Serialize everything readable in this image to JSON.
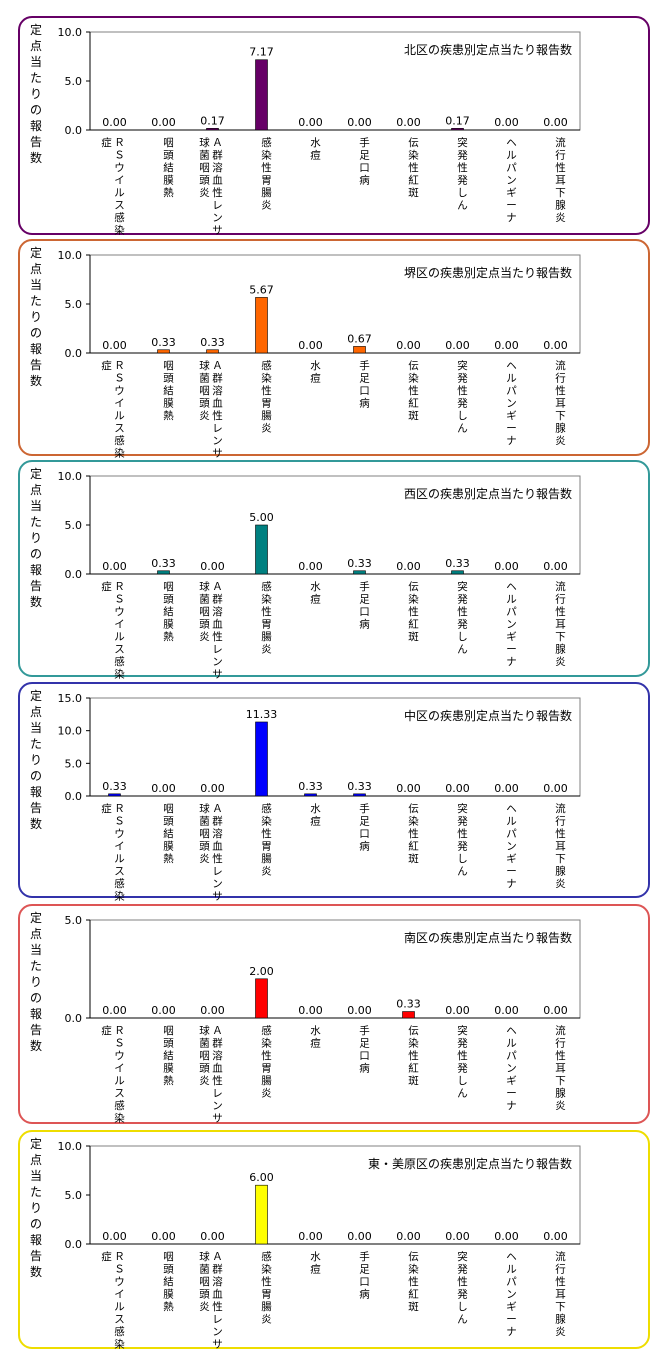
{
  "common": {
    "ylabel": "定点当たりの報告数",
    "categories": [
      [
        "ＲＳウイルス感染",
        "症"
      ],
      [
        "咽頭結膜熱"
      ],
      [
        "Ａ群溶血性レンサ",
        "球菌咽頭炎"
      ],
      [
        "感染性胃腸炎"
      ],
      [
        "水痘"
      ],
      [
        "手足口病"
      ],
      [
        "伝染性紅斑"
      ],
      [
        "突発性発しん"
      ],
      [
        "ヘルパンギーナ"
      ],
      [
        "流行性耳下腺炎"
      ]
    ]
  },
  "chart_data": [
    {
      "type": "bar",
      "title": "北区の疾患別定点当たり報告数",
      "ylabel": "定点当たりの報告数",
      "categories": [
        "ＲＳウイルス感染症",
        "咽頭結膜熱",
        "Ａ群溶血性レンサ球菌咽頭炎",
        "感染性胃腸炎",
        "水痘",
        "手足口病",
        "伝染性紅斑",
        "突発性発しん",
        "ヘルパンギーナ",
        "流行性耳下腺炎"
      ],
      "values": [
        0.0,
        0.0,
        0.17,
        7.17,
        0.0,
        0.0,
        0.0,
        0.17,
        0.0,
        0.0
      ],
      "value_labels": [
        "0.00",
        "0.00",
        "0.17",
        "7.17",
        "0.00",
        "0.00",
        "0.00",
        "0.17",
        "0.00",
        "0.00"
      ],
      "ylim": [
        0,
        10
      ],
      "yticks": [
        "0.0",
        "5.0",
        "10.0"
      ],
      "color": "#660066",
      "border": "#660066"
    },
    {
      "type": "bar",
      "title": "堺区の疾患別定点当たり報告数",
      "ylabel": "定点当たりの報告数",
      "categories": [
        "ＲＳウイルス感染症",
        "咽頭結膜熱",
        "Ａ群溶血性レンサ球菌咽頭炎",
        "感染性胃腸炎",
        "水痘",
        "手足口病",
        "伝染性紅斑",
        "突発性発しん",
        "ヘルパンギーナ",
        "流行性耳下腺炎"
      ],
      "values": [
        0.0,
        0.33,
        0.33,
        5.67,
        0.0,
        0.67,
        0.0,
        0.0,
        0.0,
        0.0
      ],
      "value_labels": [
        "0.00",
        "0.33",
        "0.33",
        "5.67",
        "0.00",
        "0.67",
        "0.00",
        "0.00",
        "0.00",
        "0.00"
      ],
      "ylim": [
        0,
        10
      ],
      "yticks": [
        "0.0",
        "5.0",
        "10.0"
      ],
      "color": "#FF6600",
      "border": "#CC6633"
    },
    {
      "type": "bar",
      "title": "西区の疾患別定点当たり報告数",
      "ylabel": "定点当たりの報告数",
      "categories": [
        "ＲＳウイルス感染症",
        "咽頭結膜熱",
        "Ａ群溶血性レンサ球菌咽頭炎",
        "感染性胃腸炎",
        "水痘",
        "手足口病",
        "伝染性紅斑",
        "突発性発しん",
        "ヘルパンギーナ",
        "流行性耳下腺炎"
      ],
      "values": [
        0.0,
        0.33,
        0.0,
        5.0,
        0.0,
        0.33,
        0.0,
        0.33,
        0.0,
        0.0
      ],
      "value_labels": [
        "0.00",
        "0.33",
        "0.00",
        "5.00",
        "0.00",
        "0.33",
        "0.00",
        "0.33",
        "0.00",
        "0.00"
      ],
      "ylim": [
        0,
        10
      ],
      "yticks": [
        "0.0",
        "5.0",
        "10.0"
      ],
      "color": "#008080",
      "border": "#339999"
    },
    {
      "type": "bar",
      "title": "中区の疾患別定点当たり報告数",
      "ylabel": "定点当たりの報告数",
      "categories": [
        "ＲＳウイルス感染症",
        "咽頭結膜熱",
        "Ａ群溶血性レンサ球菌咽頭炎",
        "感染性胃腸炎",
        "水痘",
        "手足口病",
        "伝染性紅斑",
        "突発性発しん",
        "ヘルパンギーナ",
        "流行性耳下腺炎"
      ],
      "values": [
        0.33,
        0.0,
        0.0,
        11.33,
        0.33,
        0.33,
        0.0,
        0.0,
        0.0,
        0.0
      ],
      "value_labels": [
        "0.33",
        "0.00",
        "0.00",
        "11.33",
        "0.33",
        "0.33",
        "0.00",
        "0.00",
        "0.00",
        "0.00"
      ],
      "ylim": [
        0,
        15
      ],
      "yticks": [
        "0.0",
        "5.0",
        "10.0",
        "15.0"
      ],
      "color": "#0000FF",
      "border": "#3333AA"
    },
    {
      "type": "bar",
      "title": "南区の疾患別定点当たり報告数",
      "ylabel": "定点当たりの報告数",
      "categories": [
        "ＲＳウイルス感染症",
        "咽頭結膜熱",
        "Ａ群溶血性レンサ球菌咽頭炎",
        "感染性胃腸炎",
        "水痘",
        "手足口病",
        "伝染性紅斑",
        "突発性発しん",
        "ヘルパンギーナ",
        "流行性耳下腺炎"
      ],
      "values": [
        0.0,
        0.0,
        0.0,
        2.0,
        0.0,
        0.0,
        0.33,
        0.0,
        0.0,
        0.0
      ],
      "value_labels": [
        "0.00",
        "0.00",
        "0.00",
        "2.00",
        "0.00",
        "0.00",
        "0.33",
        "0.00",
        "0.00",
        "0.00"
      ],
      "ylim": [
        0,
        5
      ],
      "yticks": [
        "0.0",
        "5.0"
      ],
      "color": "#FF0000",
      "border": "#DD5555"
    },
    {
      "type": "bar",
      "title": "東・美原区の疾患別定点当たり報告数",
      "ylabel": "定点当たりの報告数",
      "categories": [
        "ＲＳウイルス感染症",
        "咽頭結膜熱",
        "Ａ群溶血性レンサ球菌咽頭炎",
        "感染性胃腸炎",
        "水痘",
        "手足口病",
        "伝染性紅斑",
        "突発性発しん",
        "ヘルパンギーナ",
        "流行性耳下腺炎"
      ],
      "values": [
        0.0,
        0.0,
        0.0,
        6.0,
        0.0,
        0.0,
        0.0,
        0.0,
        0.0,
        0.0
      ],
      "value_labels": [
        "0.00",
        "0.00",
        "0.00",
        "6.00",
        "0.00",
        "0.00",
        "0.00",
        "0.00",
        "0.00",
        "0.00"
      ],
      "ylim": [
        0,
        10
      ],
      "yticks": [
        "0.0",
        "5.0",
        "10.0"
      ],
      "color": "#FFFF00",
      "border": "#EEDD00"
    }
  ]
}
